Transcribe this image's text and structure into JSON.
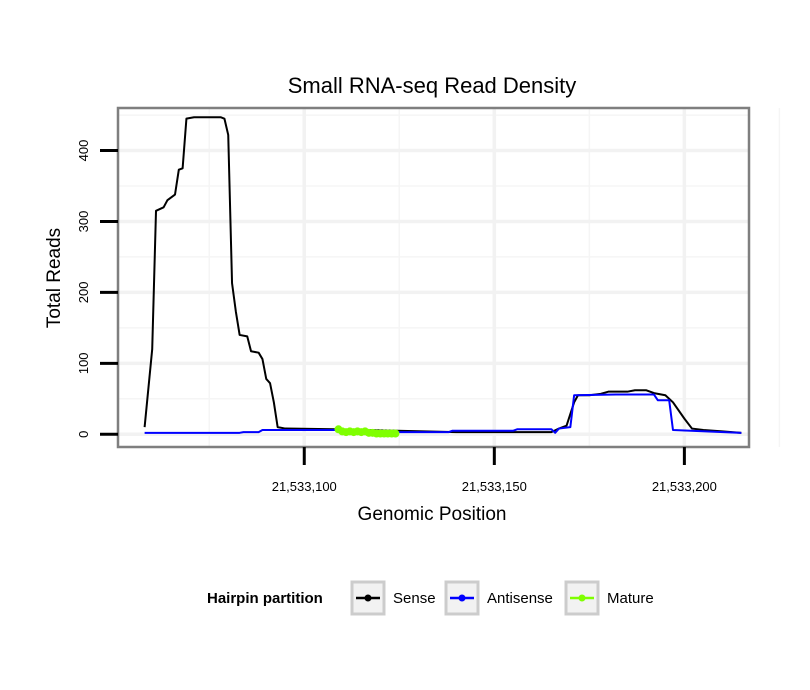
{
  "chart_data": {
    "type": "line",
    "title": "Small RNA-seq Read Density",
    "xlabel": "Genomic Position",
    "ylabel": "Total Reads",
    "xlim": [
      21533051,
      21533217
    ],
    "ylim": [
      -18,
      460
    ],
    "x_ticks": [
      21533100,
      21533150,
      21533200
    ],
    "x_tick_labels": [
      "21,533,100",
      "21,533,150",
      "21,533,200"
    ],
    "y_ticks": [
      0,
      100,
      200,
      300,
      400
    ],
    "y_tick_labels": [
      "0",
      "100",
      "200",
      "300",
      "400"
    ],
    "grid": true,
    "legend": {
      "title": "Hairpin partition",
      "position": "bottom",
      "entries": [
        "Sense",
        "Antisense",
        "Mature"
      ]
    },
    "series": [
      {
        "name": "Sense",
        "color": "#000000",
        "style": "line",
        "points": [
          [
            21533058,
            10
          ],
          [
            21533060,
            120
          ],
          [
            21533061,
            315
          ],
          [
            21533063,
            320
          ],
          [
            21533064,
            330
          ],
          [
            21533066,
            338
          ],
          [
            21533067,
            373
          ],
          [
            21533068,
            375
          ],
          [
            21533069,
            445
          ],
          [
            21533071,
            447
          ],
          [
            21533078,
            447
          ],
          [
            21533079,
            445
          ],
          [
            21533080,
            422
          ],
          [
            21533081,
            213
          ],
          [
            21533082,
            173
          ],
          [
            21533083,
            140
          ],
          [
            21533085,
            138
          ],
          [
            21533086,
            117
          ],
          [
            21533088,
            115
          ],
          [
            21533089,
            106
          ],
          [
            21533090,
            78
          ],
          [
            21533091,
            72
          ],
          [
            21533092,
            45
          ],
          [
            21533093,
            10
          ],
          [
            21533095,
            8
          ],
          [
            21533108,
            7
          ],
          [
            21533140,
            3
          ],
          [
            21533165,
            3
          ],
          [
            21533167,
            8
          ],
          [
            21533169,
            12
          ],
          [
            21533171,
            45
          ],
          [
            21533172,
            55
          ],
          [
            21533175,
            55
          ],
          [
            21533178,
            57
          ],
          [
            21533180,
            60
          ],
          [
            21533185,
            60
          ],
          [
            21533187,
            62
          ],
          [
            21533190,
            62
          ],
          [
            21533192,
            58
          ],
          [
            21533195,
            55
          ],
          [
            21533197,
            45
          ],
          [
            21533200,
            22
          ],
          [
            21533202,
            8
          ],
          [
            21533205,
            6
          ],
          [
            21533210,
            4
          ],
          [
            21533215,
            2
          ]
        ]
      },
      {
        "name": "Antisense",
        "color": "#0000ff",
        "style": "line",
        "points": [
          [
            21533058,
            2
          ],
          [
            21533083,
            2
          ],
          [
            21533084,
            3
          ],
          [
            21533088,
            3
          ],
          [
            21533089,
            6
          ],
          [
            21533109,
            6
          ],
          [
            21533110,
            3
          ],
          [
            21533138,
            3
          ],
          [
            21533139,
            5
          ],
          [
            21533155,
            5
          ],
          [
            21533156,
            7
          ],
          [
            21533165,
            7
          ],
          [
            21533166,
            2
          ],
          [
            21533167,
            8
          ],
          [
            21533170,
            10
          ],
          [
            21533171,
            55
          ],
          [
            21533182,
            56
          ],
          [
            21533192,
            56
          ],
          [
            21533193,
            48
          ],
          [
            21533196,
            48
          ],
          [
            21533197,
            6
          ],
          [
            21533215,
            2
          ]
        ]
      },
      {
        "name": "Mature",
        "color": "#7fff00",
        "style": "line-points",
        "points": [
          [
            21533109,
            7
          ],
          [
            21533110,
            4
          ],
          [
            21533111,
            3
          ],
          [
            21533112,
            4
          ],
          [
            21533113,
            3
          ],
          [
            21533114,
            4
          ],
          [
            21533115,
            3
          ],
          [
            21533116,
            4
          ],
          [
            21533117,
            2
          ],
          [
            21533118,
            2
          ],
          [
            21533119,
            1
          ],
          [
            21533120,
            1
          ],
          [
            21533121,
            1
          ],
          [
            21533122,
            1
          ],
          [
            21533123,
            1
          ],
          [
            21533124,
            1
          ]
        ]
      }
    ]
  }
}
